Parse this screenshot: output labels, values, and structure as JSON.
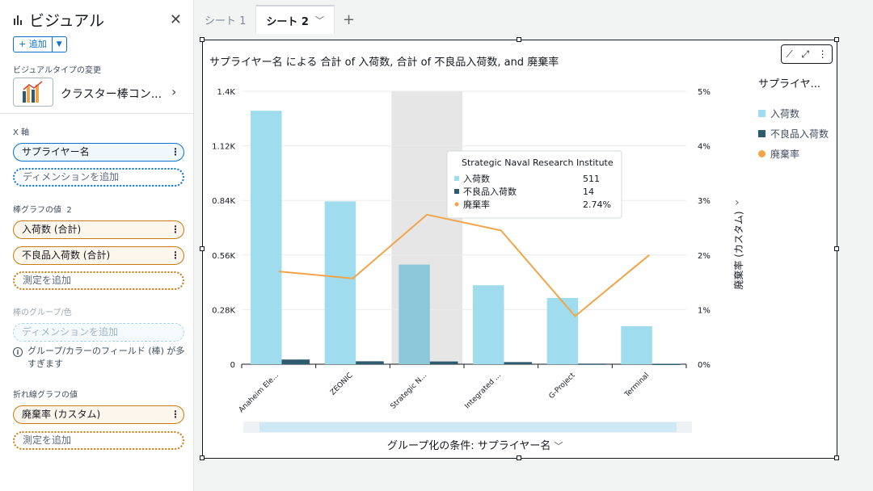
{
  "sidebar": {
    "title": "ビジュアル",
    "add_label": "+ 追加",
    "visual_type_label": "ビジュアルタイプの変更",
    "visual_type_name": "クラスター棒コン...",
    "x_axis_label": "X 軸",
    "x_field": "サプライヤー名",
    "add_dimension": "ディメンションを追加",
    "bar_values_label": "棒グラフの値",
    "bar_values_count": "2",
    "bar_field_1": "入荷数 (合計)",
    "bar_field_2": "不良品入荷数 (合計)",
    "add_measure": "測定を追加",
    "group_color_label": "棒のグループ/色",
    "group_add_dimension": "ディメンションを追加",
    "warning": "グループ/カラーのフィールド (棒) が多すぎます",
    "line_values_label": "折れ線グラフの値",
    "line_field": "廃棄率 (カスタム)",
    "line_add_measure": "測定を追加"
  },
  "tabs": [
    {
      "label": "シート 1"
    },
    {
      "label": "シート 2"
    }
  ],
  "visual": {
    "title": "サプライヤー名 による 合計 of 入荷数, 合計 of 不良品入荷数, and 廃棄率",
    "legend_title": "サプライヤ...",
    "group_by": "グループ化の条件: サプライヤー名",
    "tooltip": {
      "title": "Strategic Naval Research Institute",
      "rows": [
        {
          "label": "入荷数",
          "value": "511"
        },
        {
          "label": "不良品入荷数",
          "value": "14"
        },
        {
          "label": "廃棄率",
          "value": "2.74%"
        }
      ]
    }
  },
  "colors": {
    "bar1": "#9edcee",
    "bar2": "#2e5b6e",
    "line": "#f0a54a",
    "highlight": "#e6e6e6"
  },
  "chart_data": {
    "type": "bar",
    "categories": [
      "Anaheim Ele...",
      "ZEONIC",
      "Strategic N...",
      "Integrated ...",
      "G-Project",
      "Terminal"
    ],
    "series": [
      {
        "name": "入荷数",
        "type": "bar",
        "values": [
          1300,
          835,
          511,
          405,
          340,
          195
        ]
      },
      {
        "name": "不良品入荷数",
        "type": "bar",
        "values": [
          24,
          15,
          14,
          11,
          3,
          2
        ]
      },
      {
        "name": "廃棄率",
        "type": "line",
        "axis": "right",
        "values": [
          1.7,
          1.57,
          2.74,
          2.45,
          0.88,
          2.0
        ]
      }
    ],
    "y_left_ticks": [
      "0",
      "0.28K",
      "0.56K",
      "0.84K",
      "1.12K",
      "1.4K"
    ],
    "y_left_range": [
      0,
      1400
    ],
    "y_right_ticks": [
      "0%",
      "1%",
      "2%",
      "3%",
      "4%",
      "5%"
    ],
    "y_right_range": [
      0,
      5
    ],
    "y_right_label": "廃棄率 (カスタム)",
    "highlighted_index": 2,
    "legend": [
      "入荷数",
      "不良品入荷数",
      "廃棄率"
    ]
  }
}
